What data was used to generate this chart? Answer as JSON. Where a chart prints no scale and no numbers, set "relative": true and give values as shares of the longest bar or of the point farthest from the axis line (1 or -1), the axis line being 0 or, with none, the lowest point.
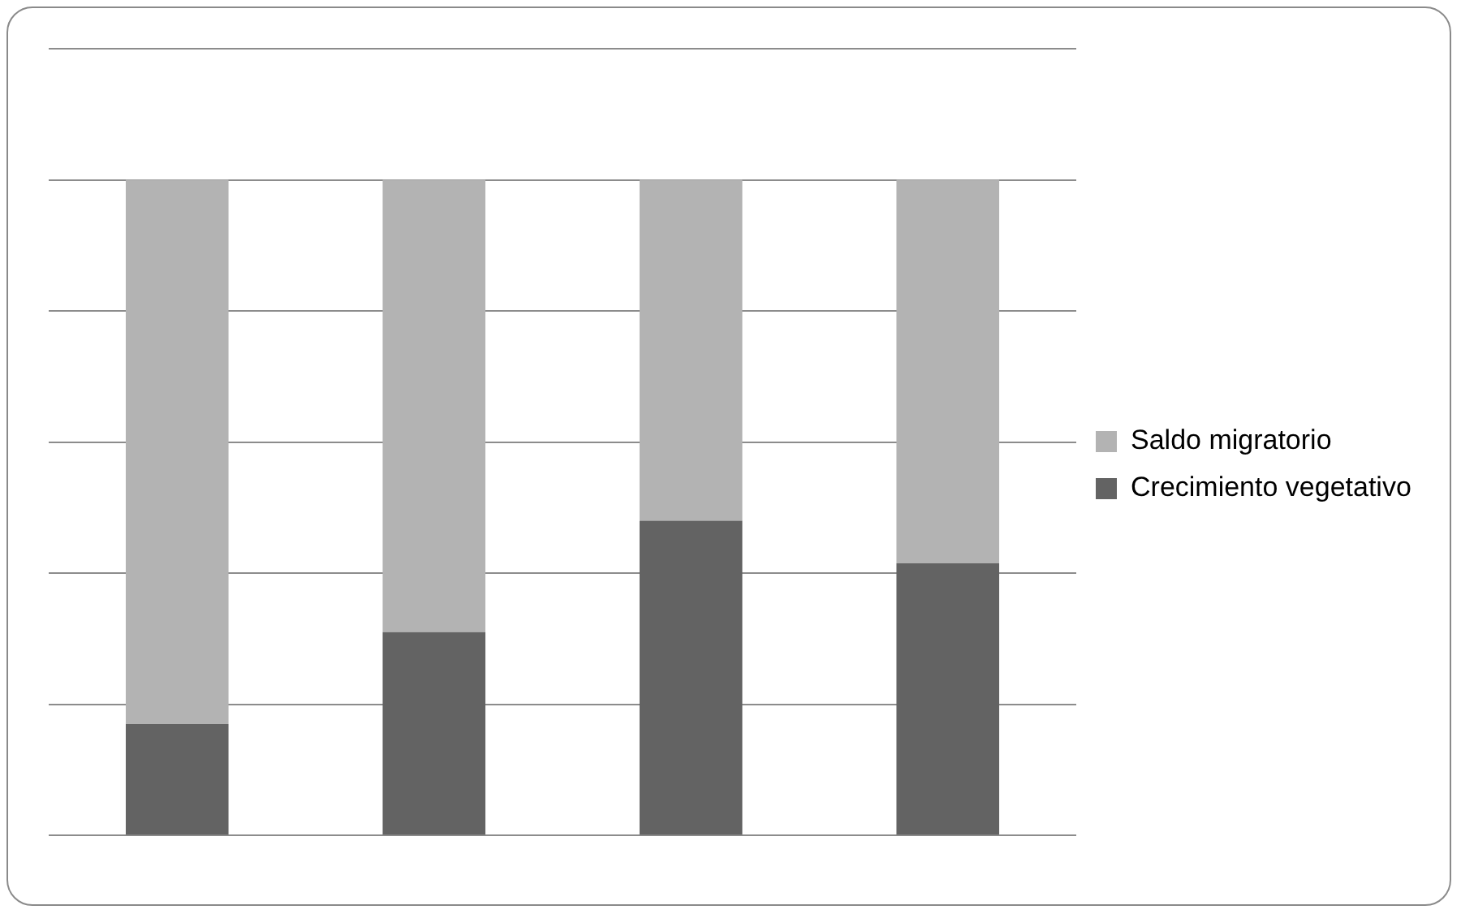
{
  "chart_data": {
    "type": "bar",
    "stacked": true,
    "relative": true,
    "grid": "y",
    "legend": "right",
    "categories": [
      null,
      null,
      null,
      null
    ],
    "series": [
      {
        "name": "Crecimiento vegetativo",
        "color": "#636363",
        "values": [
          0.17,
          0.31,
          0.48,
          0.415
        ]
      },
      {
        "name": "Saldo migratorio",
        "color": "#b3b3b3",
        "values": [
          0.83,
          0.69,
          0.52,
          0.585
        ]
      }
    ]
  }
}
